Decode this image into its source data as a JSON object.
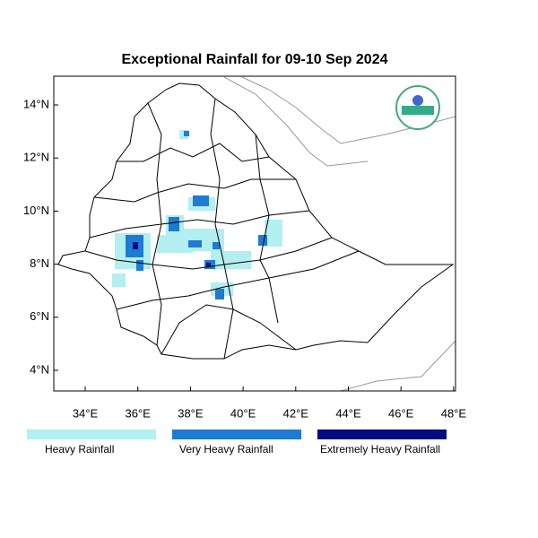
{
  "title": "Exceptional Rainfall for 09-10 Sep 2024",
  "x_ticks": [
    "34°E",
    "36°E",
    "38°E",
    "40°E",
    "42°E",
    "44°E",
    "46°E",
    "48°E"
  ],
  "y_ticks": [
    "14°N",
    "12°N",
    "10°N",
    "8°N",
    "6°N",
    "4°N"
  ],
  "legend": [
    {
      "label": "Heavy Rainfall",
      "color": "#b3eef0"
    },
    {
      "label": "Very Heavy Rainfall",
      "color": "#1e7ad2"
    },
    {
      "label": "Extremely Heavy Rainfall",
      "color": "#000d7e"
    }
  ]
}
